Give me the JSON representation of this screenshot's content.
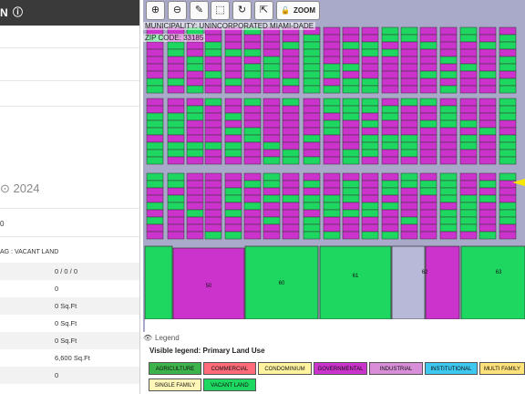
{
  "left_panel": {
    "header_fragment": "N",
    "year_fragment": "2024",
    "row_fragment_1": "0",
    "land_use_fragment": "AG : VACANT LAND",
    "values": [
      "0 / 0 / 0",
      "0",
      "0 Sq.Ft",
      "0 Sq.Ft",
      "0 Sq.Ft",
      "6,600 Sq.Ft",
      "0"
    ]
  },
  "map": {
    "municipality": "MUNICIPALITY: UNINCORPORATED MIAMI-DADE",
    "zip": "ZIP CODE: 33185",
    "zoom_label": "ZOOM",
    "tools": [
      "zoom-in-icon",
      "zoom-out-icon",
      "edit-icon",
      "select-icon",
      "refresh-icon",
      "share-icon"
    ],
    "lot_numbers": [
      "50",
      "60",
      "61",
      "62",
      "63"
    ]
  },
  "legend": {
    "toggle_label": "Legend",
    "title": "Visible legend: Primary Land Use",
    "items": [
      {
        "label": "AGRICULTURE",
        "color": "#3cb44b"
      },
      {
        "label": "COMMERCIAL",
        "color": "#ff6b7a"
      },
      {
        "label": "CONDOMINIUM",
        "color": "#fff3a0"
      },
      {
        "label": "GOVERNMENTAL",
        "color": "#cc33cc"
      },
      {
        "label": "INDUSTRIAL",
        "color": "#d88fd8"
      },
      {
        "label": "INSTITUTIONAL",
        "color": "#3ec8f0"
      },
      {
        "label": "MULTI FAMILY",
        "color": "#ffe27a"
      },
      {
        "label": "SINGLE FAMILY",
        "color": "#fff6b8"
      },
      {
        "label": "VACANT LAND",
        "color": "#1ed760"
      }
    ]
  },
  "colors": {
    "road": "#a9a9c9",
    "vacant": "#1ed760",
    "gov": "#cc33cc",
    "agri": "#3cb44b"
  }
}
